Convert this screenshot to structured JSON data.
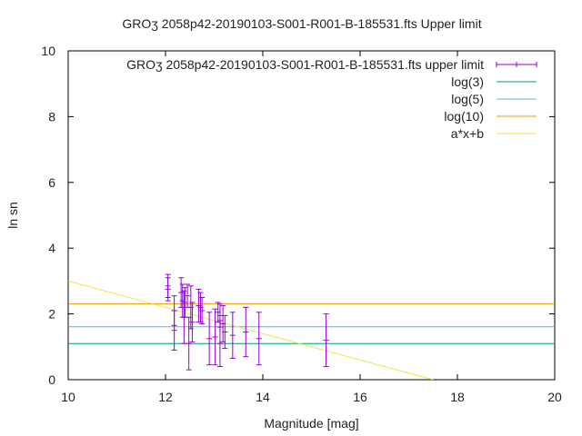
{
  "chart_data": {
    "type": "scatter",
    "title": "GROʒ 2058p42-20190103-S001-R001-B-185531.fts Upper limit",
    "xlabel": "Magnitude [mag]",
    "ylabel": "ln sn",
    "xlim": [
      10,
      20
    ],
    "ylim": [
      0,
      10
    ],
    "xticks": [
      "10",
      "12",
      "14",
      "16",
      "18",
      "20"
    ],
    "yticks": [
      "0",
      "2",
      "4",
      "6",
      "8",
      "10"
    ],
    "grid": false,
    "legend_position": "top-right",
    "series": [
      {
        "name": "GROʒ 2058p42-20190103-S001-R001-B-185531.fts upper limit",
        "kind": "errorbars",
        "color": "#9400d3",
        "points": [
          {
            "x": 12.05,
            "y": 2.85,
            "err": 0.35
          },
          {
            "x": 12.05,
            "y": 2.75,
            "err": 0.35
          },
          {
            "x": 12.18,
            "y": 2.1,
            "err": 0.45
          },
          {
            "x": 12.18,
            "y": 1.5,
            "err": 0.6
          },
          {
            "x": 12.32,
            "y": 2.65,
            "err": 0.45
          },
          {
            "x": 12.35,
            "y": 2.4,
            "err": 0.5
          },
          {
            "x": 12.38,
            "y": 1.9,
            "err": 0.8
          },
          {
            "x": 12.4,
            "y": 2.35,
            "err": 0.45
          },
          {
            "x": 12.45,
            "y": 2.55,
            "err": 0.35
          },
          {
            "x": 12.48,
            "y": 1.1,
            "err": 0.8
          },
          {
            "x": 12.52,
            "y": 2.2,
            "err": 0.65
          },
          {
            "x": 12.55,
            "y": 1.75,
            "err": 0.6
          },
          {
            "x": 12.68,
            "y": 2.25,
            "err": 0.5
          },
          {
            "x": 12.72,
            "y": 2.2,
            "err": 0.45
          },
          {
            "x": 12.75,
            "y": 2.1,
            "err": 0.4
          },
          {
            "x": 12.9,
            "y": 1.25,
            "err": 0.8
          },
          {
            "x": 13.02,
            "y": 1.3,
            "err": 0.85
          },
          {
            "x": 13.08,
            "y": 2.05,
            "err": 0.3
          },
          {
            "x": 13.12,
            "y": 1.95,
            "err": 0.35
          },
          {
            "x": 13.12,
            "y": 1.1,
            "err": 0.7
          },
          {
            "x": 13.18,
            "y": 1.7,
            "err": 0.55
          },
          {
            "x": 13.22,
            "y": 1.45,
            "err": 0.5
          },
          {
            "x": 13.38,
            "y": 1.35,
            "err": 0.7
          },
          {
            "x": 13.65,
            "y": 1.45,
            "err": 0.75
          },
          {
            "x": 13.92,
            "y": 1.25,
            "err": 0.8
          },
          {
            "x": 15.3,
            "y": 1.2,
            "err": 0.8
          }
        ]
      },
      {
        "name": "log(3)",
        "kind": "hline",
        "y": 1.0986,
        "color": "#009e73"
      },
      {
        "name": "log(5)",
        "kind": "hline",
        "y": 1.6094,
        "color": "#56b4e9"
      },
      {
        "name": "log(10)",
        "kind": "hline",
        "y": 2.3026,
        "color": "#e69f00"
      },
      {
        "name": "a*x+b",
        "kind": "line",
        "x": [
          10,
          17.5
        ],
        "y": [
          3.0,
          0.0
        ],
        "color": "#f0e442"
      }
    ]
  }
}
